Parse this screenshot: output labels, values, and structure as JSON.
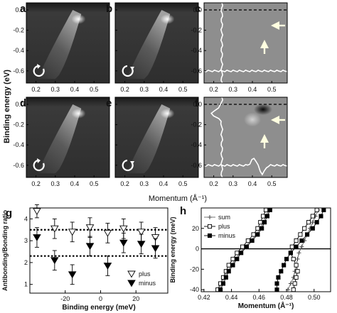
{
  "colors": {
    "dispersion": "#ffffff",
    "background_dark": "#2e2e2e",
    "difference_gray": "#8e8e8e",
    "marker_plus": "#ffffff",
    "marker_minus": "#000000",
    "arrow": "#ffffe0"
  },
  "arpes": {
    "ylabel": "Binding energy (eV)",
    "xlabel": "Momentum (Å⁻¹)",
    "yticks": [
      "0.0",
      "-0.2",
      "-0.4",
      "-0.6"
    ],
    "xticks_left": [
      "0.2",
      "0.3",
      "0.4",
      "0.5"
    ],
    "xticks_mid": [
      "0.2",
      "0.3",
      "0.4",
      "0.5"
    ],
    "xticks_right": [
      "0.2",
      "0.3",
      "0.4",
      "0.5"
    ],
    "panels": [
      {
        "id": "a",
        "rotation": "clockwise-icon",
        "kind": "arpes"
      },
      {
        "id": "b",
        "rotation": "counterclockwise-icon",
        "kind": "arpes"
      },
      {
        "id": "c",
        "rotation": "",
        "kind": "difference"
      },
      {
        "id": "d",
        "rotation": "clockwise-icon",
        "kind": "arpes"
      },
      {
        "id": "e",
        "rotation": "counterclockwise-icon",
        "kind": "arpes"
      },
      {
        "id": "f",
        "rotation": "",
        "kind": "difference"
      }
    ]
  },
  "chart_data": [
    {
      "panel": "g",
      "type": "scatter",
      "xlabel": "Binding energy (meV)",
      "ylabel": "Antibonding/Bonding ratio",
      "xlim": [
        -40,
        38
      ],
      "ylim": [
        0.6,
        4.5
      ],
      "xticks": [
        "-20",
        "0",
        "20"
      ],
      "yticks": [
        "1",
        "2",
        "3",
        "4"
      ],
      "reference_lines": [
        3.5,
        2.3
      ],
      "series": [
        {
          "name": "plus",
          "marker": "open-triangle-down",
          "x": [
            -36,
            -26,
            -16,
            -6,
            4,
            13,
            23,
            31
          ],
          "y": [
            4.35,
            3.55,
            3.4,
            3.6,
            3.35,
            3.55,
            3.4,
            3.15
          ],
          "err": [
            0.3,
            0.45,
            0.45,
            0.45,
            0.45,
            0.45,
            0.45,
            0.45
          ]
        },
        {
          "name": "minus",
          "marker": "filled-triangle-down",
          "x": [
            -36,
            -26,
            -16,
            -6,
            4,
            13,
            23,
            31
          ],
          "y": [
            3.15,
            2.1,
            1.45,
            2.75,
            1.85,
            2.9,
            2.85,
            2.65
          ],
          "err": [
            0.45,
            0.45,
            0.45,
            0.45,
            0.45,
            0.45,
            0.45,
            0.45
          ]
        }
      ]
    },
    {
      "panel": "h",
      "type": "line",
      "xlabel": "Momentum (Å⁻¹)",
      "ylabel": "Binding energy (meV)",
      "xlim": [
        0.418,
        0.512
      ],
      "ylim": [
        -42,
        40
      ],
      "xticks": [
        "0.42",
        "0.44",
        "0.46",
        "0.48",
        "0.50"
      ],
      "yticks": [
        "20",
        "0",
        "-20",
        "-40"
      ],
      "reference_lines": [
        0
      ],
      "y": [
        -40,
        -34,
        -28,
        -22,
        -16,
        -10,
        -4,
        2,
        8,
        14,
        20,
        26,
        32,
        38
      ],
      "series": [
        {
          "name": "sum",
          "marker": "plus",
          "branch1": [
            0.431,
            0.433,
            0.435,
            0.437,
            0.44,
            0.443,
            0.446,
            0.45,
            0.454,
            0.458,
            0.461,
            0.463,
            0.465,
            0.467
          ],
          "branch2": [
            0.481,
            0.483,
            0.485,
            0.486,
            0.487,
            0.488,
            0.489,
            0.491,
            0.493,
            0.495,
            0.497,
            0.499,
            0.501,
            0.503
          ]
        },
        {
          "name": "plus",
          "marker": "open-square",
          "branch1": [
            0.43,
            0.432,
            0.434,
            0.436,
            0.438,
            0.441,
            0.444,
            0.448,
            0.452,
            0.456,
            0.459,
            0.461,
            0.463,
            0.465
          ],
          "branch2": [
            0.485,
            0.486,
            0.487,
            0.488,
            0.487,
            0.485,
            0.483,
            0.484,
            0.487,
            0.49,
            0.493,
            0.496,
            0.499,
            0.502
          ]
        },
        {
          "name": "minus",
          "marker": "filled-square",
          "branch1": [
            0.432,
            0.434,
            0.436,
            0.438,
            0.441,
            0.444,
            0.447,
            0.451,
            0.455,
            0.459,
            0.462,
            0.464,
            0.466,
            0.468
          ],
          "branch2": [
            0.473,
            0.473,
            0.474,
            0.476,
            0.478,
            0.48,
            0.483,
            0.487,
            0.491,
            0.495,
            0.499,
            0.502,
            0.505,
            0.507
          ]
        }
      ]
    }
  ]
}
